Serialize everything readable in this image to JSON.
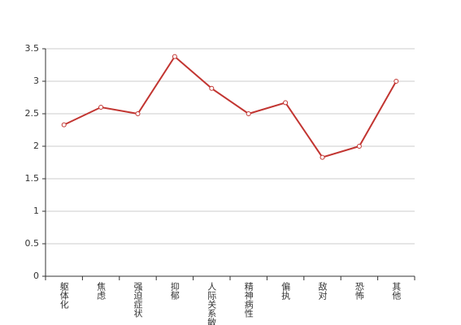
{
  "chart_data": {
    "type": "line",
    "categories": [
      "躯体化",
      "焦虑",
      "强迫症状",
      "抑郁",
      "人际关系敏感",
      "精神病性",
      "偏执",
      "敌对",
      "恐怖",
      "其他"
    ],
    "values": [
      2.33,
      2.6,
      2.5,
      3.38,
      2.89,
      2.5,
      2.67,
      1.83,
      2.0,
      3.0
    ],
    "color": "#c23531",
    "ylim": [
      0,
      3.5
    ],
    "yticks": [
      0,
      0.5,
      1,
      1.5,
      2,
      2.5,
      3,
      3.5
    ],
    "grid": true
  }
}
